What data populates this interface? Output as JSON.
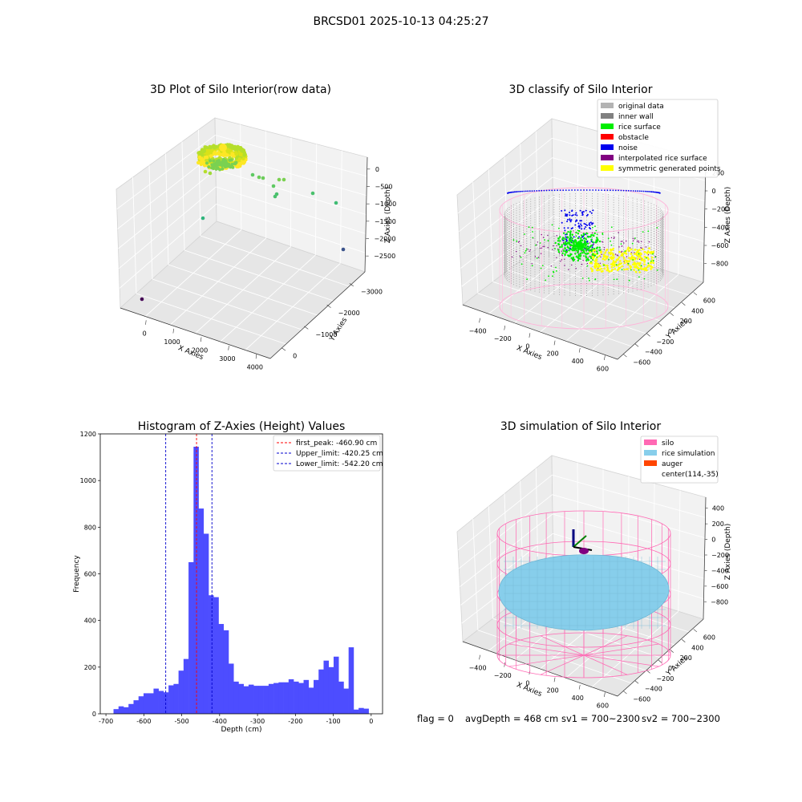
{
  "figure": {
    "title": "BRCSD01 2025-10-13 04:25:27",
    "status": {
      "flag": "flag = 0",
      "avg": "avgDepth = 468 cm",
      "sv1": "sv1 = 700~2300",
      "sv2": "sv2 = 700~2300"
    }
  },
  "chart_data": [
    {
      "type": "scatter",
      "title": "3D Plot of Silo Interior(row data)",
      "xlabel": "X Axies",
      "ylabel": "Y Axies",
      "zlabel": "Z Axies (Depth)",
      "x_ticks": [
        "0",
        "1000",
        "2000",
        "3000",
        "4000"
      ],
      "y_ticks": [
        "0",
        "−1000",
        "−2000",
        "−3000"
      ],
      "z_ticks": [
        "0",
        "−500",
        "−1000",
        "−1500",
        "−2000",
        "−2500"
      ],
      "colormap": "viridis"
    },
    {
      "type": "scatter",
      "title": "3D classify of Silo Interior",
      "xlabel": "X Axies",
      "ylabel": "Y Axies",
      "zlabel": "Z Axies (Depth)",
      "x_ticks": [
        "−400",
        "−200",
        "0",
        "200",
        "400",
        "600"
      ],
      "y_ticks": [
        "600",
        "400",
        "200",
        "0",
        "−200",
        "−400",
        "−600"
      ],
      "z_ticks": [
        "200",
        "0",
        "−200",
        "−400",
        "−600",
        "−800"
      ],
      "legend_position": "top-right",
      "legend": [
        {
          "label": "original data",
          "color": "#b3b3b3"
        },
        {
          "label": "inner wall",
          "color": "#808080"
        },
        {
          "label": "rice surface",
          "color": "#00ee00"
        },
        {
          "label": "obstacle",
          "color": "#ff0000"
        },
        {
          "label": "noise",
          "color": "#0000ee"
        },
        {
          "label": "interpolated rice surface",
          "color": "#800080"
        },
        {
          "label": "symmetric generated points",
          "color": "#ffff00"
        }
      ]
    },
    {
      "type": "bar",
      "title": "Histogram of Z-Axies (Height) Values",
      "xlabel": "Depth (cm)",
      "ylabel": "Frequency",
      "xlim": [
        -715,
        30
      ],
      "ylim": [
        0,
        1200
      ],
      "x_ticks": [
        -700,
        -600,
        -500,
        -400,
        -300,
        -200,
        -100,
        0
      ],
      "y_ticks": [
        0,
        200,
        400,
        600,
        800,
        1000,
        1200
      ],
      "bar_color": "#4d4dff",
      "bin_start": -680,
      "bin_width": 13.2,
      "values": [
        20,
        32,
        28,
        42,
        58,
        75,
        88,
        88,
        108,
        98,
        92,
        122,
        128,
        185,
        235,
        650,
        1145,
        880,
        772,
        508,
        500,
        385,
        358,
        215,
        138,
        128,
        118,
        125,
        120,
        120,
        120,
        128,
        132,
        135,
        135,
        148,
        138,
        132,
        145,
        112,
        145,
        190,
        228,
        200,
        245,
        138,
        108,
        285,
        18,
        25,
        22
      ],
      "lines": [
        {
          "value": -460.9,
          "label": "first_peak: -460.90 cm",
          "color": "#ff0000"
        },
        {
          "value": -420.25,
          "label": "Upper_limit: -420.25 cm",
          "color": "#0000cc"
        },
        {
          "value": -542.2,
          "label": "Lower_limit: -542.20 cm",
          "color": "#0000cc"
        }
      ],
      "legend_position": "top-right"
    },
    {
      "type": "scatter",
      "title": "3D simulation of Silo Interior",
      "xlabel": "X Axies",
      "ylabel": "Y Axies",
      "zlabel": "Z Axies (Depth)",
      "x_ticks": [
        "−400",
        "−200",
        "0",
        "200",
        "400",
        "600"
      ],
      "y_ticks": [
        "600",
        "400",
        "200",
        "0",
        "−200",
        "−400",
        "−600"
      ],
      "z_ticks": [
        "400",
        "200",
        "0",
        "−200",
        "−400",
        "−600",
        "−800"
      ],
      "legend_position": "top-right",
      "legend": [
        {
          "label": "silo",
          "color": "#ff69b4"
        },
        {
          "label": "rice simulation",
          "color": "#87ceeb"
        },
        {
          "label": "auger",
          "color": "#ff4500"
        },
        {
          "label": "center(114,-35)",
          "color": ""
        }
      ]
    }
  ]
}
